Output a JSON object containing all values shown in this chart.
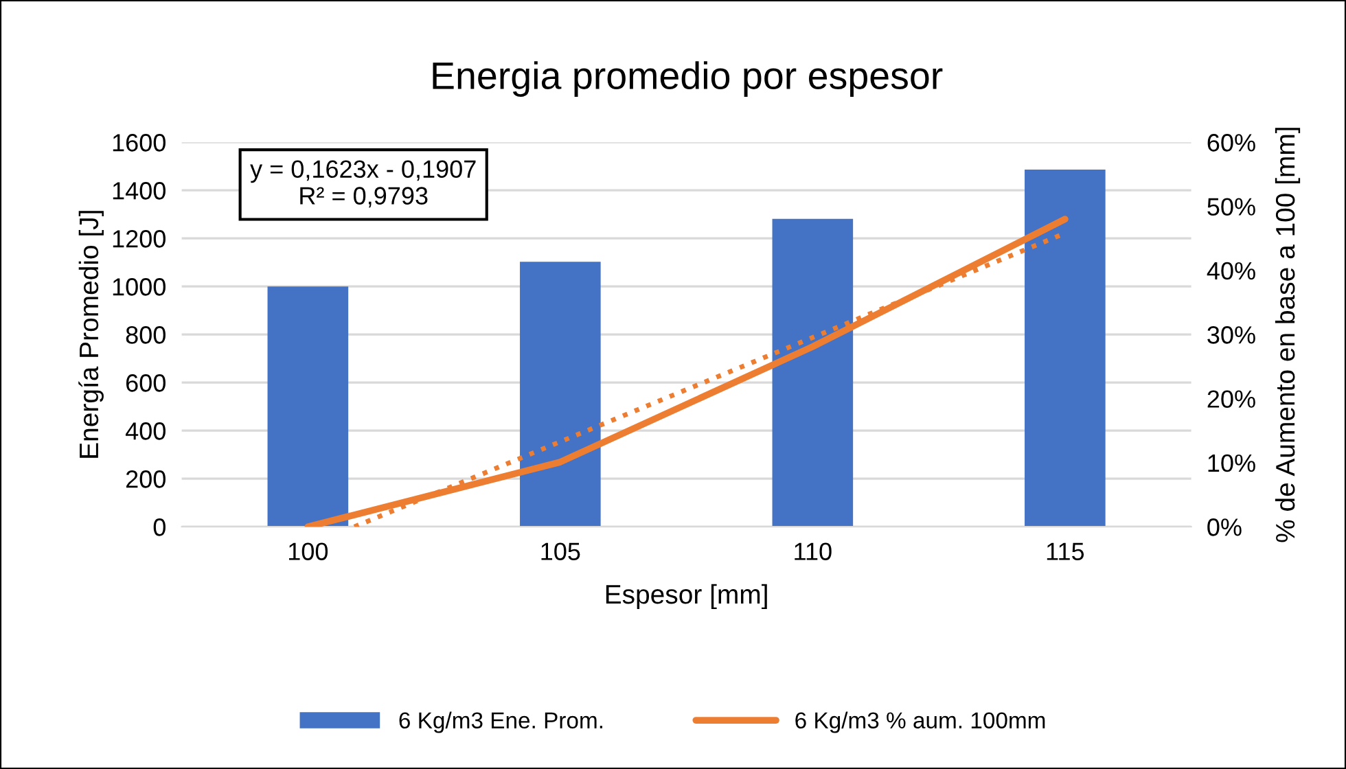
{
  "chart_data": {
    "type": "bar",
    "title": "Energia promedio por espesor",
    "xlabel": "Espesor [mm]",
    "ylabel": "Energía Promedio [J]",
    "y2label": "% de Aumento en base a 100 [mm]",
    "x": [
      100,
      105,
      110,
      115
    ],
    "xlim": [
      97.5,
      117.5
    ],
    "xticks": [
      100,
      105,
      110,
      115
    ],
    "ylim": [
      0,
      1600
    ],
    "yticks": [
      0,
      200,
      400,
      600,
      800,
      1000,
      1200,
      1400,
      1600
    ],
    "y2lim": [
      0,
      60
    ],
    "y2ticks": [
      {
        "value": 0,
        "label": "0%"
      },
      {
        "value": 10,
        "label": "10%"
      },
      {
        "value": 20,
        "label": "20%"
      },
      {
        "value": 30,
        "label": "30%"
      },
      {
        "value": 40,
        "label": "40%"
      },
      {
        "value": 50,
        "label": "50%"
      },
      {
        "value": 60,
        "label": "60%"
      }
    ],
    "series": [
      {
        "name": "6 Kg/m3 Ene. Prom.",
        "color": "#4472c4",
        "values": [
          1000,
          1103,
          1281,
          1486
        ]
      },
      {
        "name": "6 Kg/m3 % aum. 100mm",
        "type": "line",
        "axis": "y2",
        "color": "#ed7d31",
        "values": [
          0,
          10.1,
          28.1,
          48.0
        ]
      },
      {
        "type": "line",
        "axis": "y2",
        "color": "#ed7d31",
        "line_style": "dotted",
        "x": [
          100.92,
          115
        ],
        "values": [
          0,
          45.8
        ]
      }
    ],
    "annotations": [
      "y = 0,1623x - 0,1907\nR² = 0,9793"
    ],
    "grid": "y",
    "legend": "bottom"
  }
}
